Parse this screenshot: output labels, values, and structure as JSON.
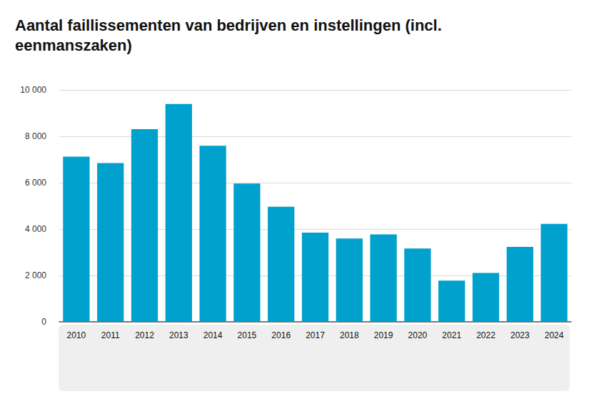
{
  "chart_data": {
    "type": "bar",
    "title": "Aantal faillissementen van bedrijven en instellingen (incl. eenmanszaken)",
    "categories": [
      "2010",
      "2011",
      "2012",
      "2013",
      "2014",
      "2015",
      "2016",
      "2017",
      "2018",
      "2019",
      "2020",
      "2021",
      "2022",
      "2023",
      "2024"
    ],
    "values": [
      7120,
      6850,
      8310,
      9390,
      7590,
      5960,
      4960,
      3850,
      3590,
      3770,
      3160,
      1780,
      2110,
      3230,
      4220
    ],
    "color": "#00a1cd",
    "ylim": [
      0,
      10000
    ],
    "yticks": [
      0,
      {
        "value": 2000,
        "label": "2 000"
      },
      {
        "value": 4000,
        "label": "4 000"
      },
      {
        "value": 6000,
        "label": "6 000"
      },
      {
        "value": 8000,
        "label": "8 000"
      },
      {
        "value": 10000,
        "label": "10 000"
      }
    ],
    "grid": true
  }
}
